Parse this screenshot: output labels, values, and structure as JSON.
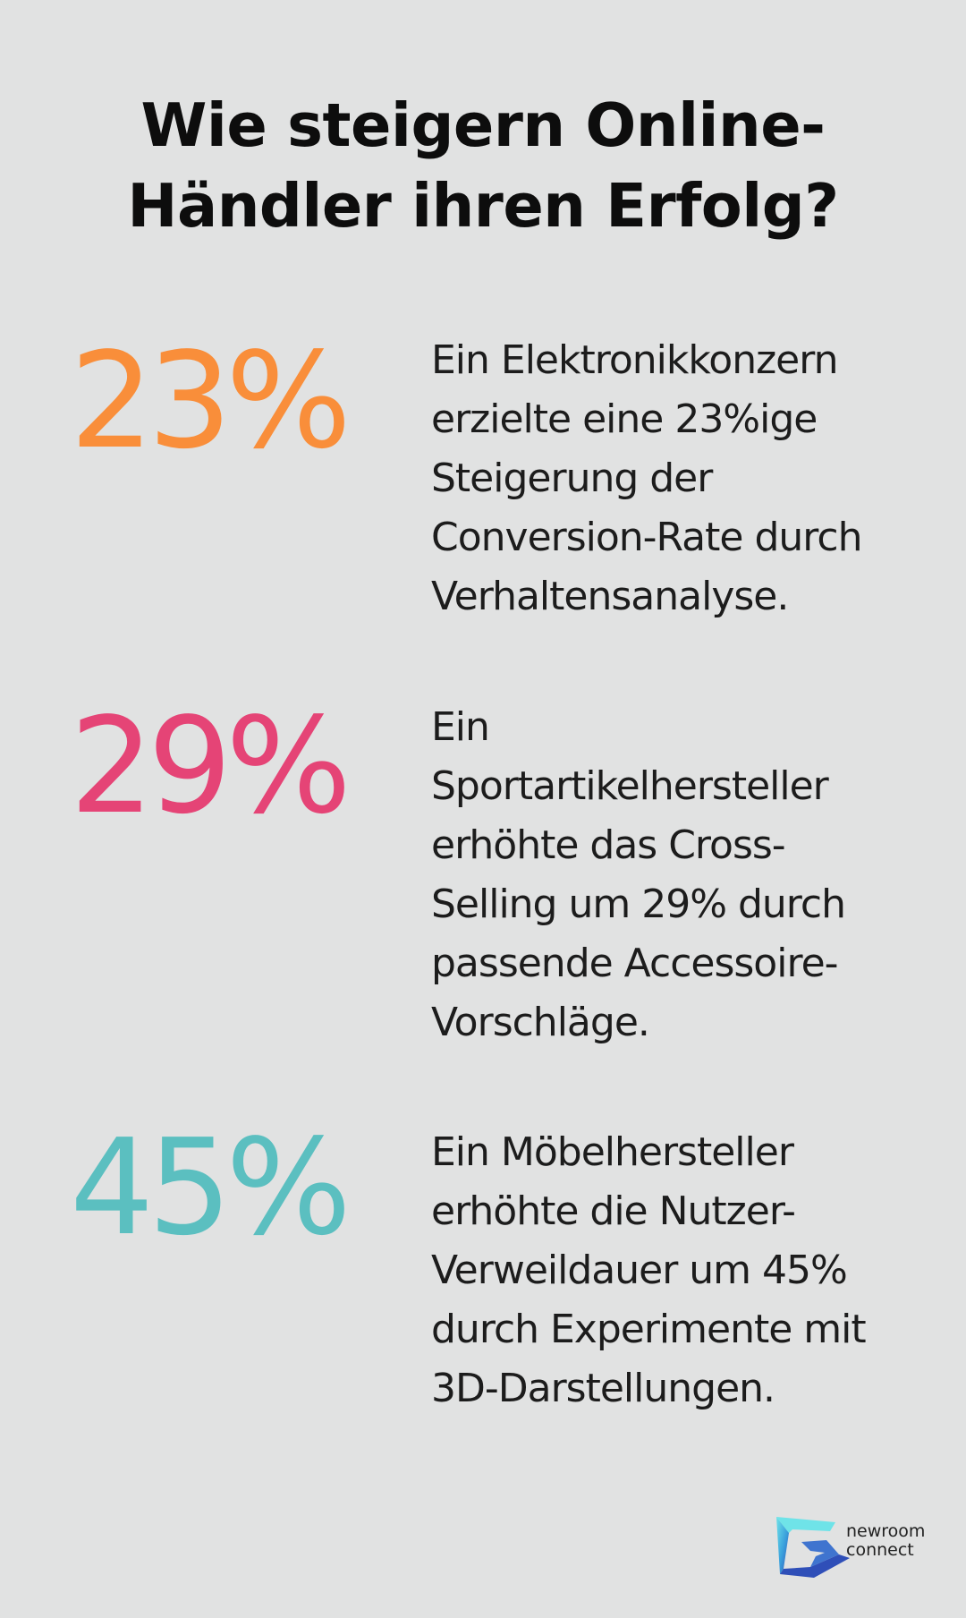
{
  "title": "Wie steigern Online-\nHändler ihren Erfolg?",
  "title_line1": "Wie steigern Online-",
  "title_line2": "Händler ihren Erfolg?",
  "stats": [
    {
      "value": "23%",
      "color": "#f98e3a",
      "text": "Ein Elektronikkonzern\nerzielte eine 23%ige\nSteigerung der\nConversion-Rate durch\nVerhaltensanalyse."
    },
    {
      "value": "29%",
      "color": "#e54476",
      "text": "Ein\nSportartikelhersteller\nerhöhte das Cross-\nSelling um 29% durch\npassende Accessoire-\nVorschläge."
    },
    {
      "value": "45%",
      "color": "#5bbfc0",
      "text": "Ein Möbelhersteller\nerhöhte die Nutzer-\nVerweildauer um 45%\ndurch Experimente mit\n3D-Darstellungen."
    }
  ],
  "logo": {
    "line1": "newroom",
    "line2": "connect"
  }
}
